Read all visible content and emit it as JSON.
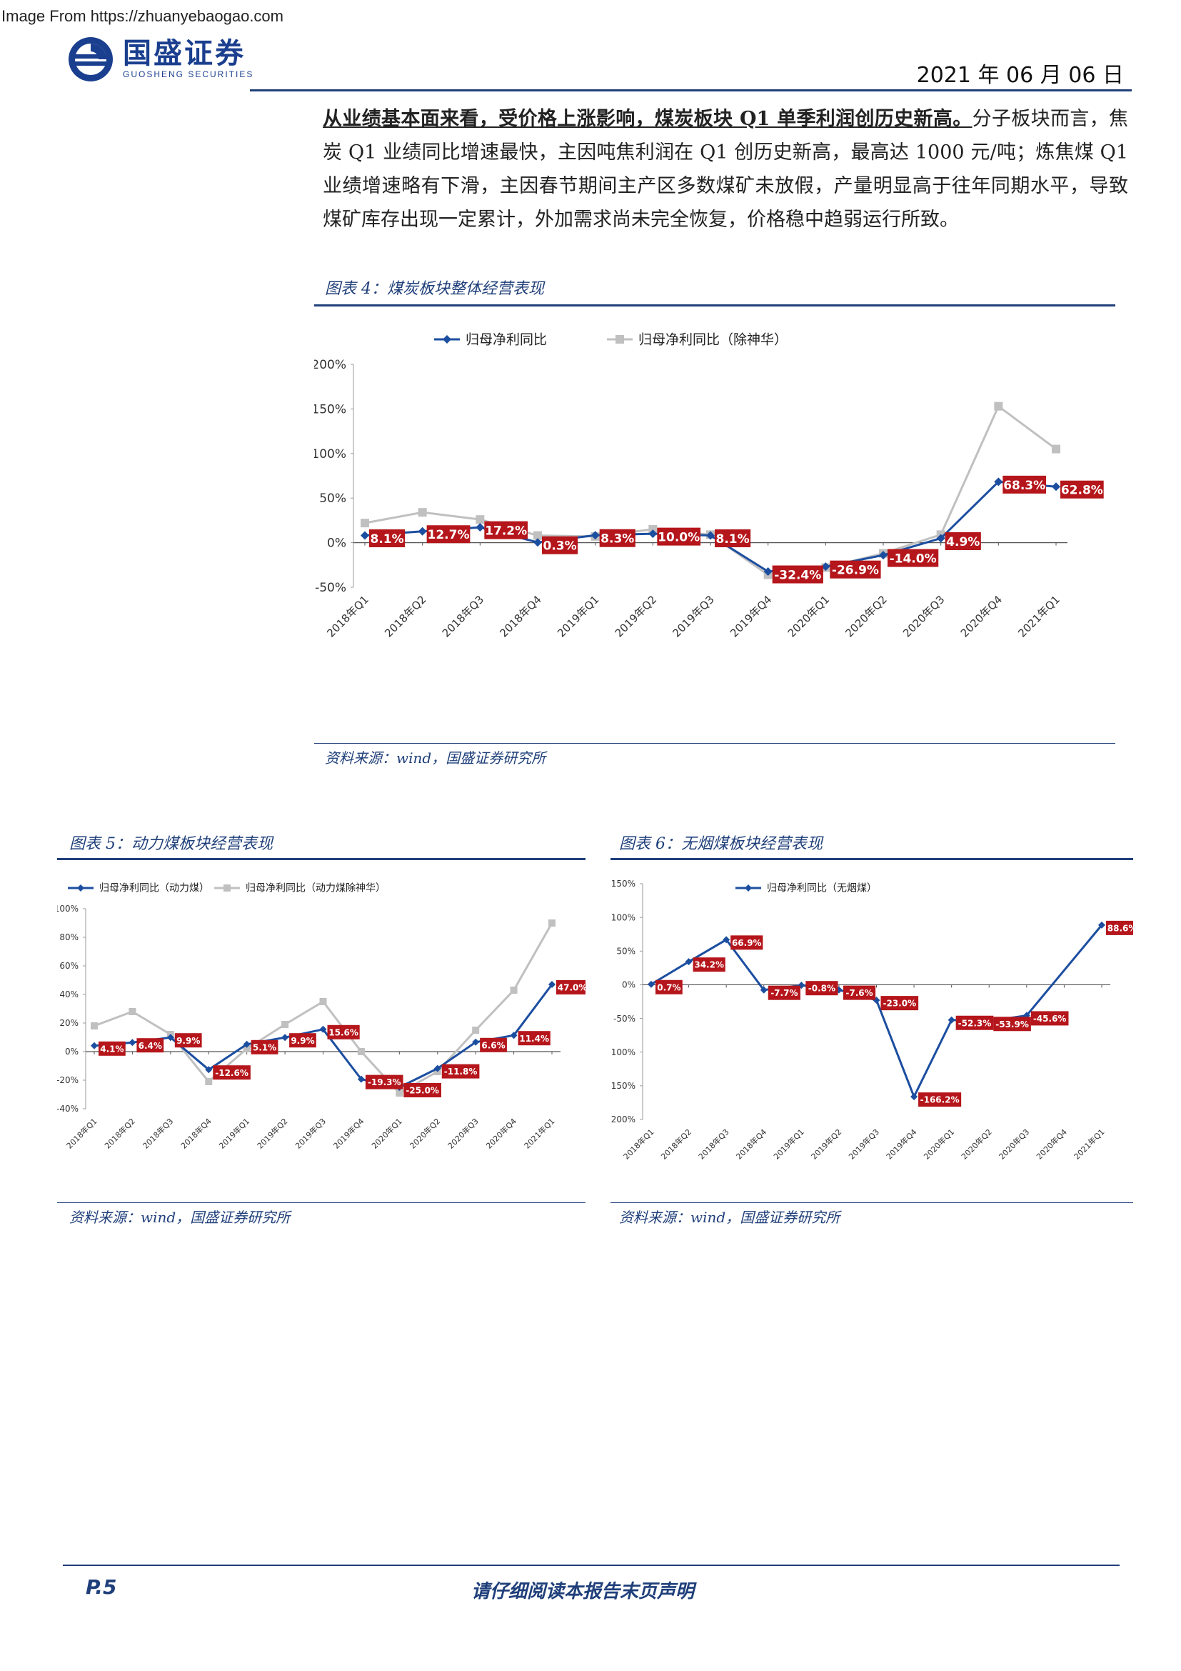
{
  "watermark": "Image From https://zhuanyebaogao.com",
  "header": {
    "brand_name": "国盛证券",
    "brand_sub": "GUOSHENG SECURITIES",
    "date": "2021 年 06 月 06 日",
    "colors": {
      "navy": "#1f3f7a",
      "blue": "#1b3f8f"
    }
  },
  "intro": {
    "bold": "从业绩基本面来看，受价格上涨影响，煤炭板块 Q1 单季利润创历史新高。",
    "rest": "分子板块而言，焦炭 Q1 业绩同比增速最快，主因吨焦利润在 Q1 创历史新高，最高达 1000 元/吨；炼焦煤 Q1 业绩增速略有下滑，主因春节期间主产区多数煤矿未放假，产量明显高于往年同期水平，导致煤矿库存出现一定累计，外加需求尚未完全恢复，价格稳中趋弱运行所致。"
  },
  "figures": {
    "fig4": {
      "title": "图表 4：煤炭板块整体经营表现",
      "source": "资料来源：wind，国盛证券研究所"
    },
    "fig5": {
      "title": "图表 5：动力煤板块经营表现",
      "source": "资料来源：wind，国盛证券研究所"
    },
    "fig6": {
      "title": "图表 6：无烟煤板块经营表现",
      "source": "资料来源：wind，国盛证券研究所"
    }
  },
  "footer": {
    "page": "P.5",
    "disclaimer": "请仔细阅读本报告末页声明"
  },
  "chart_data": [
    {
      "id": "fig4",
      "type": "line",
      "categories": [
        "2018年Q1",
        "2018年Q2",
        "2018年Q3",
        "2018年Q4",
        "2019年Q1",
        "2019年Q2",
        "2019年Q3",
        "2019年Q4",
        "2020年Q1",
        "2020年Q2",
        "2020年Q3",
        "2020年Q4",
        "2021年Q1"
      ],
      "ylim": [
        -50,
        200
      ],
      "yticks": [
        -50,
        0,
        50,
        100,
        150,
        200
      ],
      "ytick_labels": [
        "-50%",
        "0%",
        "50%",
        "100%",
        "150%",
        "200%"
      ],
      "legend_position": "top",
      "series": [
        {
          "name": "归母净利同比",
          "color": "#1c4ea0",
          "marker": "diamond",
          "values": [
            8.1,
            12.7,
            17.2,
            0.3,
            8.3,
            10.0,
            8.1,
            -32.4,
            -26.9,
            -14.0,
            4.9,
            68.3,
            62.8
          ],
          "labels": [
            "8.1%",
            "12.7%",
            "17.2%",
            "0.3%",
            "8.3%",
            "10.0%",
            "8.1%",
            "-32.4%",
            "-26.9%",
            "-14.0%",
            "4.9%",
            "68.3%",
            "62.8%"
          ]
        },
        {
          "name": "归母净利同比（除神华）",
          "color": "#c0c0c0",
          "marker": "square",
          "values": [
            22,
            34,
            26,
            8,
            7,
            15,
            9,
            -36,
            -28,
            -12,
            9,
            153,
            105
          ]
        }
      ]
    },
    {
      "id": "fig5",
      "type": "line",
      "categories": [
        "2018年Q1",
        "2018年Q2",
        "2018年Q3",
        "2018年Q4",
        "2019年Q1",
        "2019年Q2",
        "2019年Q3",
        "2019年Q4",
        "2020年Q1",
        "2020年Q2",
        "2020年Q3",
        "2020年Q4",
        "2021年Q1"
      ],
      "ylim": [
        -40,
        100
      ],
      "yticks": [
        -40,
        -20,
        0,
        20,
        40,
        60,
        80,
        100
      ],
      "ytick_labels": [
        "-40%",
        "-20%",
        "0%",
        "20%",
        "40%",
        "60%",
        "80%",
        "100%"
      ],
      "legend_position": "top",
      "series": [
        {
          "name": "归母净利同比（动力煤）",
          "color": "#1c4ea0",
          "marker": "diamond",
          "values": [
            4.1,
            6.4,
            9.9,
            -12.6,
            5.1,
            9.9,
            15.6,
            -19.3,
            -25.0,
            -11.8,
            6.6,
            11.4,
            47.0
          ],
          "labels": [
            "4.1%",
            "6.4%",
            "9.9%",
            "-12.6%",
            "5.1%",
            "9.9%",
            "15.6%",
            "-19.3%",
            "-25.0%",
            "-11.8%",
            "6.6%",
            "11.4%",
            "47.0%"
          ]
        },
        {
          "name": "归母净利同比（动力煤除神华）",
          "color": "#c0c0c0",
          "marker": "square",
          "values": [
            18,
            28,
            12,
            -21,
            2,
            19,
            35,
            0,
            -29,
            -14,
            15,
            43,
            90
          ]
        }
      ]
    },
    {
      "id": "fig6",
      "type": "line",
      "categories": [
        "2018年Q1",
        "2018年Q2",
        "2018年Q3",
        "2018年Q4",
        "2019年Q1",
        "2019年Q2",
        "2019年Q3",
        "2019年Q4",
        "2020年Q1",
        "2020年Q2",
        "2020年Q3",
        "2020年Q4",
        "2021年Q1"
      ],
      "ylim": [
        -200,
        150
      ],
      "yticks": [
        -200,
        -150,
        -100,
        -50,
        0,
        50,
        100,
        150
      ],
      "ytick_labels": [
        "-200%",
        "-150%",
        "-100%",
        "-50%",
        "0%",
        "50%",
        "100%",
        "150%"
      ],
      "legend_position": "top",
      "series": [
        {
          "name": "归母净利同比（无烟煤）",
          "color": "#1c4ea0",
          "marker": "diamond",
          "values": [
            0.7,
            34.2,
            66.9,
            -7.7,
            -0.8,
            -7.6,
            -23.0,
            -166.2,
            -52.3,
            -53.9,
            -45.6,
            null,
            88.6
          ],
          "labels": [
            "0.7%",
            "34.2%",
            "66.9%",
            "-7.7%",
            "-0.8%",
            "-7.6%",
            "-23.0%",
            "-166.2%",
            "-52.3%",
            "-53.9%",
            "-45.6%",
            "",
            "88.6%"
          ]
        }
      ]
    }
  ]
}
